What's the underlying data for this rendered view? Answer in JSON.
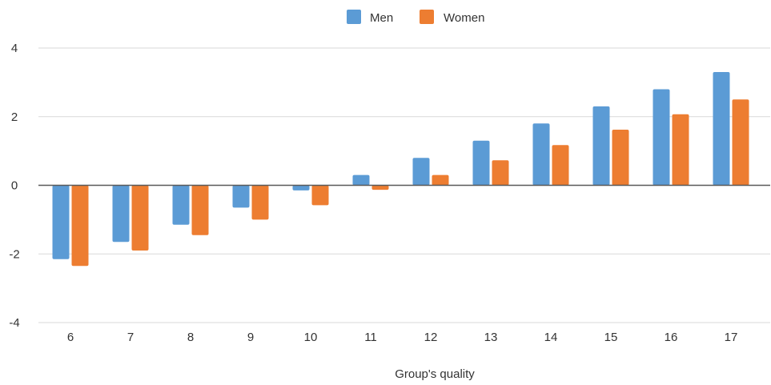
{
  "chart_data": {
    "type": "bar",
    "title": "",
    "xlabel": "Group's quality",
    "ylabel": "",
    "categories": [
      "6",
      "7",
      "8",
      "9",
      "10",
      "11",
      "12",
      "13",
      "14",
      "15",
      "16",
      "17"
    ],
    "series": [
      {
        "name": "Men",
        "color": "#5B9BD5",
        "values": [
          -2.15,
          -1.65,
          -1.15,
          -0.65,
          -0.15,
          0.3,
          0.8,
          1.3,
          1.8,
          2.3,
          2.8,
          3.3
        ]
      },
      {
        "name": "Women",
        "color": "#ED7D31",
        "values": [
          -2.35,
          -1.9,
          -1.45,
          -1.0,
          -0.58,
          -0.13,
          0.3,
          0.73,
          1.17,
          1.62,
          2.07,
          2.5
        ]
      }
    ],
    "ylim": [
      -4,
      4
    ],
    "yticks": [
      4,
      2,
      0,
      -2,
      -4
    ],
    "grid": true,
    "legend_position": "top-center"
  }
}
